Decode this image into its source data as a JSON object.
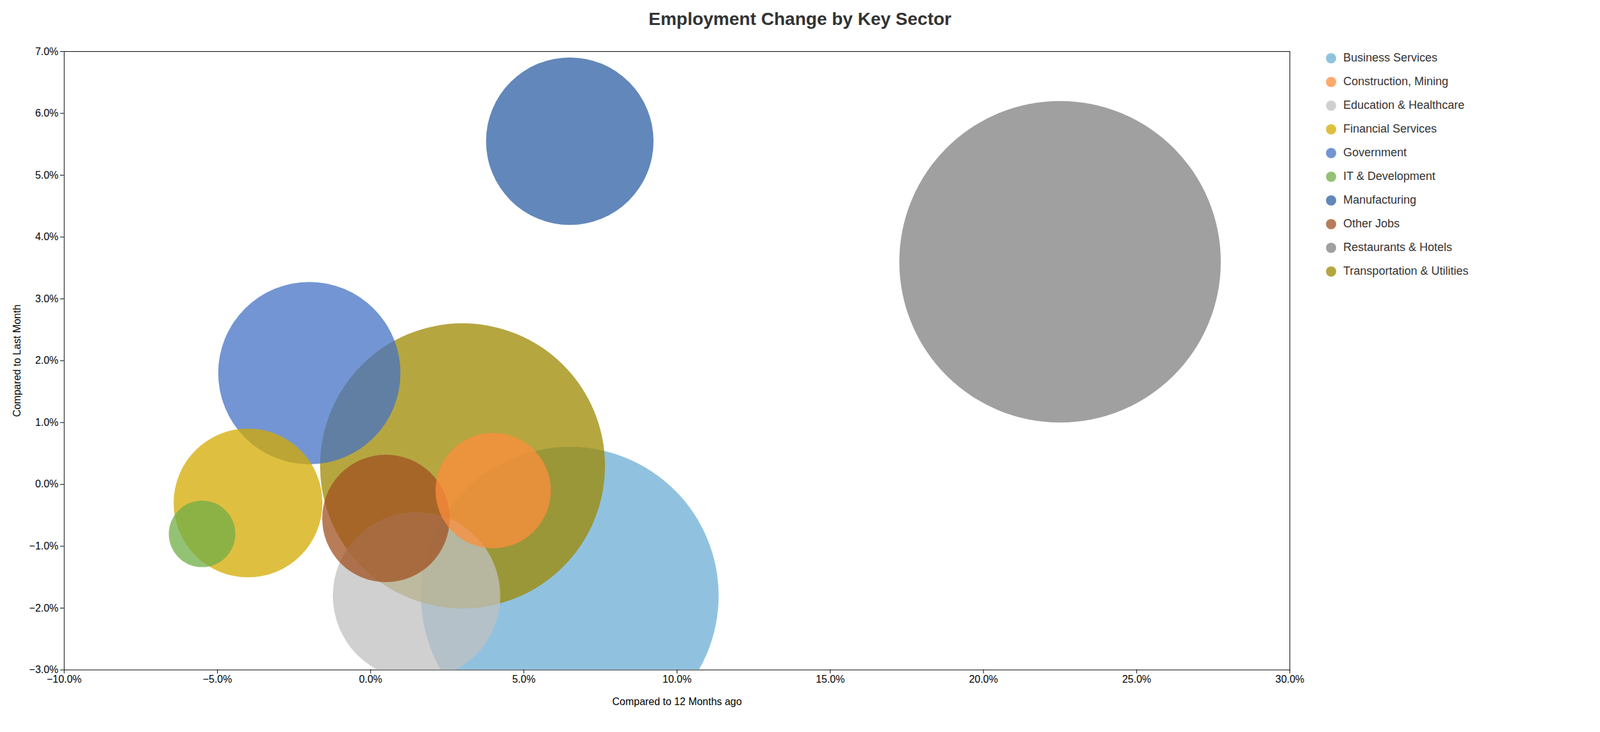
{
  "chart_data": {
    "type": "scatter",
    "title": "Employment Change by Key Sector",
    "xlabel": "Compared to 12 Months ago",
    "ylabel": "Compared to Last Month",
    "series": [
      {
        "name": "Business Services",
        "color": "#6baed6",
        "x": [
          0.065
        ],
        "values": [
          -0.018
        ],
        "size": [
          120000
        ]
      },
      {
        "name": "Construction, Mining",
        "color": "#fd8d3c",
        "x": [
          0.04
        ],
        "values": [
          -0.001
        ],
        "size": [
          18000
        ]
      },
      {
        "name": "Education & Healthcare",
        "color": "#c0c0c0",
        "x": [
          0.015
        ],
        "values": [
          -0.018
        ],
        "size": [
          38000
        ]
      },
      {
        "name": "Financial Services",
        "color": "#d4aa00",
        "x": [
          -0.04
        ],
        "values": [
          -0.003
        ],
        "size": [
          30000
        ]
      },
      {
        "name": "Government",
        "color": "#4472c4",
        "x": [
          -0.02
        ],
        "values": [
          0.018
        ],
        "size": [
          45000
        ]
      },
      {
        "name": "IT & Development",
        "color": "#70ad47",
        "x": [
          -0.055
        ],
        "values": [
          -0.008
        ],
        "size": [
          6000
        ]
      },
      {
        "name": "Manufacturing",
        "color": "#2e5fa3",
        "x": [
          0.065
        ],
        "values": [
          0.0555
        ],
        "size": [
          38000
        ]
      },
      {
        "name": "Other Jobs",
        "color": "#a05020",
        "x": [
          0.005
        ],
        "values": [
          -0.0055
        ],
        "size": [
          22000
        ]
      },
      {
        "name": "Restaurants & Hotels",
        "color": "#808080",
        "x": [
          0.225
        ],
        "values": [
          0.036
        ],
        "size": [
          140000
        ]
      },
      {
        "name": "Transportation & Utilities",
        "color": "#9e8800",
        "x": [
          0.03
        ],
        "values": [
          0.003
        ],
        "size": [
          110000
        ]
      }
    ],
    "xlim": [
      -0.1,
      0.3
    ],
    "ylim": [
      -0.03,
      0.07
    ],
    "xticks": [
      {
        "value": -0.1,
        "label": "−10.0%"
      },
      {
        "value": -0.05,
        "label": "−5.0%"
      },
      {
        "value": 0.0,
        "label": "0.0%"
      },
      {
        "value": 0.05,
        "label": "5.0%"
      },
      {
        "value": 0.1,
        "label": "10.0%"
      },
      {
        "value": 0.15,
        "label": "15.0%"
      },
      {
        "value": 0.2,
        "label": "20.0%"
      },
      {
        "value": 0.25,
        "label": "25.0%"
      },
      {
        "value": 0.3,
        "label": "30.0%"
      }
    ],
    "yticks": [
      {
        "value": -0.03,
        "label": "−3.0%"
      },
      {
        "value": -0.02,
        "label": "−2.0%"
      },
      {
        "value": -0.01,
        "label": "−1.0%"
      },
      {
        "value": 0.0,
        "label": "0.0%"
      },
      {
        "value": 0.01,
        "label": "1.0%"
      },
      {
        "value": 0.02,
        "label": "2.0%"
      },
      {
        "value": 0.03,
        "label": "3.0%"
      },
      {
        "value": 0.04,
        "label": "4.0%"
      },
      {
        "value": 0.05,
        "label": "5.0%"
      },
      {
        "value": 0.06,
        "label": "6.0%"
      },
      {
        "value": 0.07,
        "label": "7.0%"
      }
    ],
    "grid": false,
    "legend": "right"
  }
}
